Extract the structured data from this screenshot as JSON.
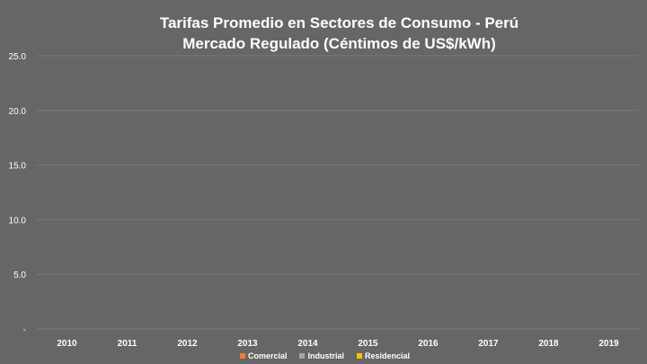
{
  "chart_data": {
    "type": "bar",
    "title_line1": "Tarifas Promedio en Sectores de Consumo  - Perú",
    "title_line2": "Mercado Regulado (Céntimos de US$/kWh)",
    "categories": [
      "2010",
      "2011",
      "2012",
      "2013",
      "2014",
      "2015",
      "2016",
      "2017",
      "2018",
      "2019"
    ],
    "series": [
      {
        "name": "Comercial",
        "color": "#ED7D31",
        "values": [
          0,
          0,
          0,
          0,
          0,
          0,
          0,
          0,
          0,
          0
        ]
      },
      {
        "name": "Industrial",
        "color": "#A5A5A5",
        "values": [
          0,
          0,
          0,
          0,
          0,
          0,
          0,
          0,
          0,
          0
        ]
      },
      {
        "name": "Residencial",
        "color": "#FFC000",
        "values": [
          0,
          0,
          0,
          0,
          0,
          0,
          0,
          0,
          0,
          0
        ]
      }
    ],
    "ylim": [
      0,
      25
    ],
    "yticks": [
      {
        "value": 0,
        "label": "-"
      },
      {
        "value": 5,
        "label": "5.0"
      },
      {
        "value": 10,
        "label": "10.0"
      },
      {
        "value": 15,
        "label": "15.0"
      },
      {
        "value": 20,
        "label": "20.0"
      },
      {
        "value": 25,
        "label": "25.0"
      }
    ],
    "grid": true,
    "legend_position": "bottom",
    "background_color": "#666666",
    "gridline_color": "#7A7A7A"
  }
}
